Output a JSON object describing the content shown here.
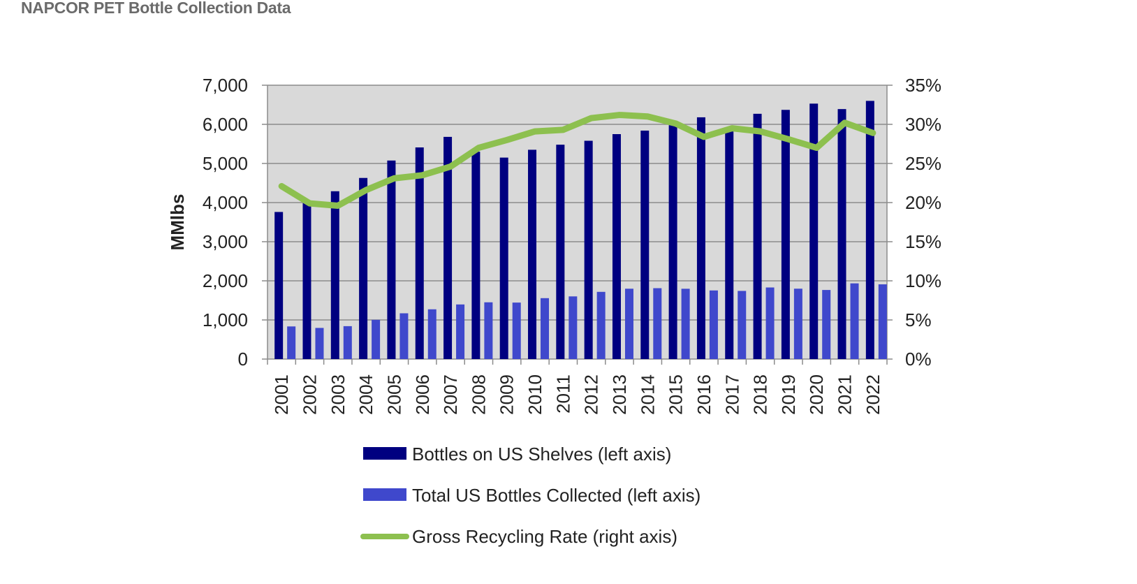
{
  "title": "NAPCOR PET Bottle Collection Data",
  "chart_data": {
    "type": "bar+line",
    "categories": [
      "2001",
      "2002",
      "2003",
      "2004",
      "2005",
      "2006",
      "2007",
      "2008",
      "2009",
      "2010",
      "2011",
      "2012",
      "2013",
      "2014",
      "2015",
      "2016",
      "2017",
      "2018",
      "2019",
      "2020",
      "2021",
      "2022"
    ],
    "ylabel": "MMlbs",
    "ylim": [
      0,
      7000
    ],
    "yticks": [
      "0",
      "1,000",
      "2,000",
      "3,000",
      "4,000",
      "5,000",
      "6,000",
      "7,000"
    ],
    "y2lim": [
      0,
      35
    ],
    "y2ticks": [
      "0%",
      "5%",
      "10%",
      "15%",
      "20%",
      "25%",
      "30%",
      "35%"
    ],
    "grid": true,
    "legend_position": "bottom",
    "series": [
      {
        "name": "Bottles on US Shelves (left axis)",
        "type": "bar",
        "axis": "left",
        "color": "#000080",
        "values": [
          3760,
          3990,
          4290,
          4630,
          5075,
          5410,
          5680,
          5300,
          5150,
          5350,
          5480,
          5580,
          5750,
          5840,
          5980,
          6180,
          5870,
          6270,
          6370,
          6530,
          6390,
          6600
        ]
      },
      {
        "name": "Total US Bottles Collected (left axis)",
        "type": "bar",
        "axis": "left",
        "color": "#3f48cc",
        "values": [
          834,
          796,
          841,
          1003,
          1170,
          1272,
          1396,
          1451,
          1444,
          1557,
          1602,
          1718,
          1798,
          1812,
          1797,
          1754,
          1742,
          1830,
          1799,
          1766,
          1935,
          1910
        ]
      },
      {
        "name": "Gross Recycling Rate (right axis)",
        "type": "line",
        "axis": "right",
        "color": "#8dc04f",
        "values": [
          22.1,
          19.9,
          19.6,
          21.6,
          23.1,
          23.5,
          24.6,
          27.0,
          28.0,
          29.1,
          29.3,
          30.8,
          31.2,
          31.0,
          30.1,
          28.4,
          29.5,
          29.1,
          28.1,
          27.0,
          30.2,
          28.9
        ]
      }
    ],
    "plot_background": "#d9d9d9"
  }
}
